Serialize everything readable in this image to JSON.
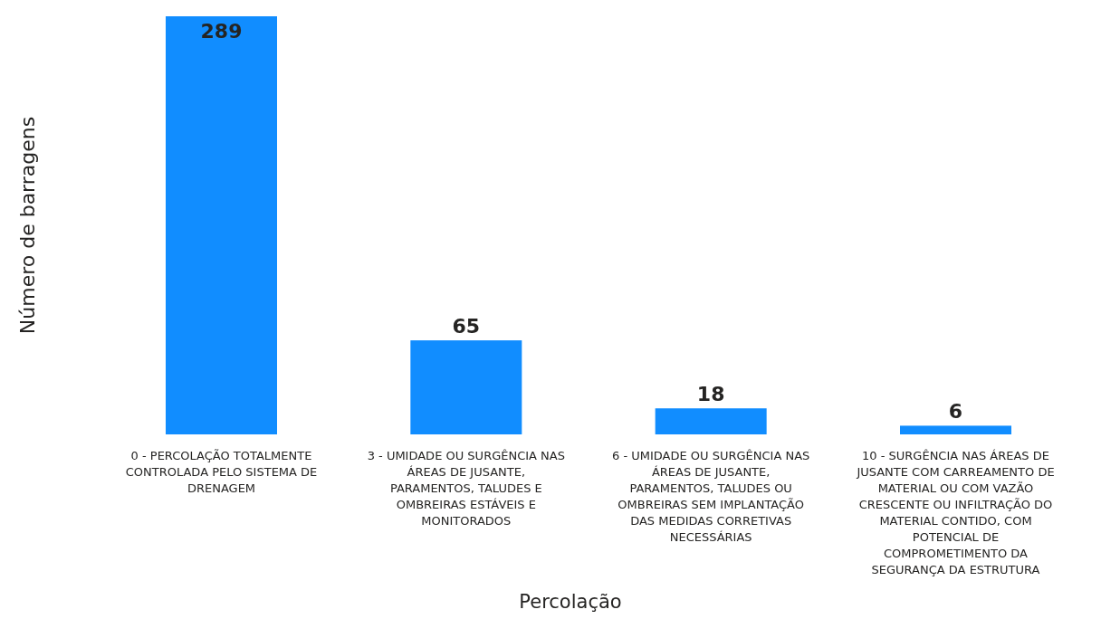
{
  "chart_data": {
    "type": "bar",
    "xlabel": "Percolação",
    "ylabel": "Número de barragens",
    "categories": [
      "0 - PERCOLAÇÃO TOTALMENTE CONTROLADA PELO SISTEMA DE DRENAGEM",
      "3 - UMIDADE OU SURGÊNCIA NAS ÁREAS DE JUSANTE, PARAMENTOS, TALUDES E OMBREIRAS ESTÁVEIS E MONITORADOS",
      "6 - UMIDADE OU SURGÊNCIA NAS ÁREAS DE JUSANTE, PARAMENTOS, TALUDES OU OMBREIRAS SEM IMPLANTAÇÃO DAS MEDIDAS CORRETIVAS NECESSÁRIAS",
      "10 - SURGÊNCIA NAS ÁREAS DE JUSANTE COM CARREAMENTO DE MATERIAL OU COM VAZÃO CRESCENTE OU INFILTRAÇÃO DO MATERIAL CONTIDO, COM POTENCIAL DE COMPROMETIMENTO DA SEGURANÇA DA ESTRUTURA"
    ],
    "values": [
      289,
      65,
      18,
      6
    ],
    "color": "#118dff",
    "data_labels": true
  }
}
